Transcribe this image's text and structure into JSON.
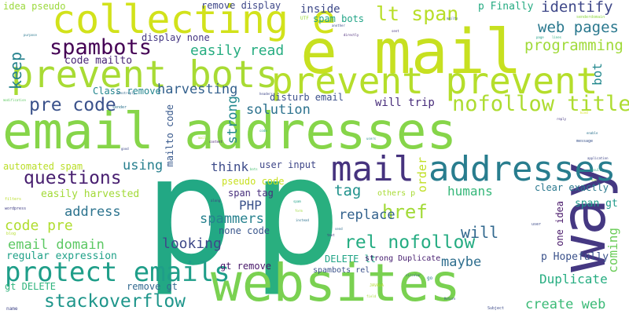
{
  "words": [
    {
      "text": "e mail",
      "color": "#c7e020",
      "vertical": false
    },
    {
      "text": "email addresses",
      "color": "#86d549",
      "vertical": false
    },
    {
      "text": "p",
      "color": "#22a884",
      "vertical": false
    },
    {
      "text": "p",
      "color": "#29af7f",
      "vertical": false
    },
    {
      "text": "websites",
      "color": "#7ad151",
      "vertical": false
    },
    {
      "text": "way",
      "color": "#453882",
      "vertical": true
    },
    {
      "text": "prevent bots",
      "color": "#a8db34",
      "vertical": false
    },
    {
      "text": "prevent prevent",
      "color": "#b5de2b",
      "vertical": false
    },
    {
      "text": "collecting e",
      "color": "#d2e21b",
      "vertical": false
    },
    {
      "text": "mail",
      "color": "#46337e",
      "vertical": false
    },
    {
      "text": "addresses",
      "color": "#287d8e",
      "vertical": false
    },
    {
      "text": "protect emails",
      "color": "#1f9e89",
      "vertical": false
    },
    {
      "text": "stackoverflow",
      "color": "#1f968b",
      "vertical": false
    },
    {
      "text": "spambots",
      "color": "#440154",
      "vertical": false
    },
    {
      "text": "nofollow title",
      "color": "#addc30",
      "vertical": false
    },
    {
      "text": "lt span",
      "color": "#b8de29",
      "vertical": false
    },
    {
      "text": "pre code",
      "color": "#3b528b",
      "vertical": false
    },
    {
      "text": "questions",
      "color": "#481f70",
      "vertical": false
    },
    {
      "text": "rel nofollow",
      "color": "#25ac82",
      "vertical": false
    },
    {
      "text": "href",
      "color": "#a2da37",
      "vertical": false
    },
    {
      "text": "identify",
      "color": "#3f4889",
      "vertical": false
    },
    {
      "text": "web pages",
      "color": "#2a788e",
      "vertical": false
    },
    {
      "text": "programming",
      "color": "#a0da39",
      "vertical": false
    },
    {
      "text": "easily read",
      "color": "#27ad81",
      "vertical": false
    },
    {
      "text": "keep",
      "color": "#26828e",
      "vertical": true
    },
    {
      "text": "code mailto",
      "color": "#482576",
      "vertical": false
    },
    {
      "text": "harvesting",
      "color": "#34618d",
      "vertical": false
    },
    {
      "text": "solution",
      "color": "#2c728e",
      "vertical": false
    },
    {
      "text": "will trip",
      "color": "#472c7a",
      "vertical": false
    },
    {
      "text": "strong",
      "color": "#23888e",
      "vertical": true
    },
    {
      "text": "using",
      "color": "#277f8e",
      "vertical": false
    },
    {
      "text": "think",
      "color": "#3e4c8a",
      "vertical": false
    },
    {
      "text": "tag",
      "color": "#20928c",
      "vertical": false
    },
    {
      "text": "order",
      "color": "#c0df25",
      "vertical": true
    },
    {
      "text": "humans",
      "color": "#35b779",
      "vertical": false
    },
    {
      "text": "address",
      "color": "#2c738e",
      "vertical": false
    },
    {
      "text": "code pre",
      "color": "#b0dd2f",
      "vertical": false
    },
    {
      "text": "email domain",
      "color": "#5cc863",
      "vertical": false
    },
    {
      "text": "PHP",
      "color": "#3b528b",
      "vertical": false
    },
    {
      "text": "spammers",
      "color": "#26818e",
      "vertical": false
    },
    {
      "text": "replace",
      "color": "#33628d",
      "vertical": false
    },
    {
      "text": "will",
      "color": "#31688e",
      "vertical": false
    },
    {
      "text": "looking",
      "color": "#3e4989",
      "vertical": false
    },
    {
      "text": "maybe",
      "color": "#2e6e8e",
      "vertical": false
    },
    {
      "text": "Duplicate",
      "color": "#26ad81",
      "vertical": false
    },
    {
      "text": "create web",
      "color": "#3aba76",
      "vertical": false
    },
    {
      "text": "coming",
      "color": "#6ccd5a",
      "vertical": true
    },
    {
      "text": "bot",
      "color": "#23898e",
      "vertical": true
    },
    {
      "text": "inside",
      "color": "#3e4a89",
      "vertical": false
    },
    {
      "text": "spam bots",
      "color": "#20a486",
      "vertical": false
    },
    {
      "text": "p Finally",
      "color": "#25ab82",
      "vertical": false
    },
    {
      "text": "remove display",
      "color": "#3f4889",
      "vertical": false
    },
    {
      "text": "idea pseudo",
      "color": "#9bd93c",
      "vertical": false
    },
    {
      "text": "display none",
      "color": "#453781",
      "vertical": false
    },
    {
      "text": "Class remove",
      "color": "#24868e",
      "vertical": false
    },
    {
      "text": "disturb email",
      "color": "#3c508b",
      "vertical": false
    },
    {
      "text": "automated spam",
      "color": "#bade28",
      "vertical": false
    },
    {
      "text": "easily harvested",
      "color": "#a2da37",
      "vertical": false
    },
    {
      "text": "user input",
      "color": "#3f4788",
      "vertical": false
    },
    {
      "text": "pseudo code",
      "color": "#c8e020",
      "vertical": false
    },
    {
      "text": "span tag",
      "color": "#472e7c",
      "vertical": false
    },
    {
      "text": "mailto code",
      "color": "#38598c",
      "vertical": true
    },
    {
      "text": "clear exactly",
      "color": "#2a788e",
      "vertical": false
    },
    {
      "text": "span gt",
      "color": "#1f9a8a",
      "vertical": false
    },
    {
      "text": "one idea",
      "color": "#48186a",
      "vertical": true
    },
    {
      "text": "others p",
      "color": "#a8db34",
      "vertical": false
    },
    {
      "text": "none code",
      "color": "#39568c",
      "vertical": false
    },
    {
      "text": "regular expression",
      "color": "#1fa188",
      "vertical": false
    },
    {
      "text": "DELETE lt",
      "color": "#20a486",
      "vertical": false
    },
    {
      "text": "strong Duplicate",
      "color": "#482071",
      "vertical": false
    },
    {
      "text": "p Hopefully",
      "color": "#3b528b",
      "vertical": false
    },
    {
      "text": "gt DELETE",
      "color": "#2eb37c",
      "vertical": false
    },
    {
      "text": "gt remove",
      "color": "#48186a",
      "vertical": false
    },
    {
      "text": "spambots rel",
      "color": "#3b528b",
      "vertical": false
    },
    {
      "text": "remove gt",
      "color": "#31688e",
      "vertical": false
    },
    {
      "text": "UTF",
      "color": "#9bd93c",
      "vertical": false
    },
    {
      "text": "senderdomain",
      "color": "#8fd744",
      "vertical": false
    },
    {
      "text": "sender",
      "color": "#2c728e",
      "vertical": false
    },
    {
      "text": "message",
      "color": "#3a538b",
      "vertical": false
    },
    {
      "text": "application",
      "color": "#3f4788",
      "vertical": false
    },
    {
      "text": "wordpress",
      "color": "#424086",
      "vertical": false
    },
    {
      "text": "filters",
      "color": "#b8de29",
      "vertical": false
    },
    {
      "text": "name",
      "color": "#404688",
      "vertical": false
    },
    {
      "text": "Subject",
      "color": "#3e4c8a",
      "vertical": false
    },
    {
      "text": "Return",
      "color": "#3b528b",
      "vertical": false
    },
    {
      "text": "headers",
      "color": "#3f4889",
      "vertical": false
    },
    {
      "text": "donotreply",
      "color": "#31688e",
      "vertical": false
    },
    {
      "text": "modification",
      "color": "#5ec962",
      "vertical": false
    },
    {
      "text": "blog",
      "color": "#b5de2b",
      "vertical": false
    },
    {
      "text": "another",
      "color": "#3d4e8a",
      "vertical": false
    },
    {
      "text": "directly",
      "color": "#482677",
      "vertical": false
    },
    {
      "text": "purpose",
      "color": "#2a788e",
      "vertical": false
    },
    {
      "text": "page",
      "color": "#1fa187",
      "vertical": false
    },
    {
      "text": "lines",
      "color": "#29af7f",
      "vertical": false
    },
    {
      "text": "kind",
      "color": "#d8e219",
      "vertical": false
    },
    {
      "text": "along",
      "color": "#443a83",
      "vertical": false
    },
    {
      "text": "spam",
      "color": "#1fa088",
      "vertical": false
    },
    {
      "text": "form",
      "color": "#9fda3a",
      "vertical": false
    },
    {
      "text": "instead",
      "color": "#2c718e",
      "vertical": false
    },
    {
      "text": "users",
      "color": "#228b8d",
      "vertical": false
    },
    {
      "text": "circular",
      "color": "#38598c",
      "vertical": false
    },
    {
      "text": "JAVAbA",
      "color": "#b0dd2f",
      "vertical": false
    },
    {
      "text": "go",
      "color": "#2a788e",
      "vertical": false
    },
    {
      "text": "content",
      "color": "#482173",
      "vertical": false
    },
    {
      "text": "user",
      "color": "#3e4c8a",
      "vertical": false
    },
    {
      "text": "bots",
      "color": "#44bf70",
      "vertical": false
    },
    {
      "text": "sent",
      "color": "#46337e",
      "vertical": false
    },
    {
      "text": "mailto",
      "color": "#365c8d",
      "vertical": false
    },
    {
      "text": "enable",
      "color": "#2c728e",
      "vertical": false
    },
    {
      "text": "mail",
      "color": "#addc30",
      "vertical": false
    },
    {
      "text": "code",
      "color": "#20a486",
      "vertical": false
    },
    {
      "text": "text",
      "color": "#46337e",
      "vertical": false
    },
    {
      "text": "send",
      "color": "#2e6e8e",
      "vertical": false
    },
    {
      "text": "set",
      "color": "#95d840",
      "vertical": false
    },
    {
      "text": "good",
      "color": "#3e4a89",
      "vertical": false
    },
    {
      "text": "result",
      "color": "#22a884",
      "vertical": false
    },
    {
      "text": "field",
      "color": "#a5db36",
      "vertical": false
    },
    {
      "text": "reply",
      "color": "#453882",
      "vertical": false
    }
  ]
}
